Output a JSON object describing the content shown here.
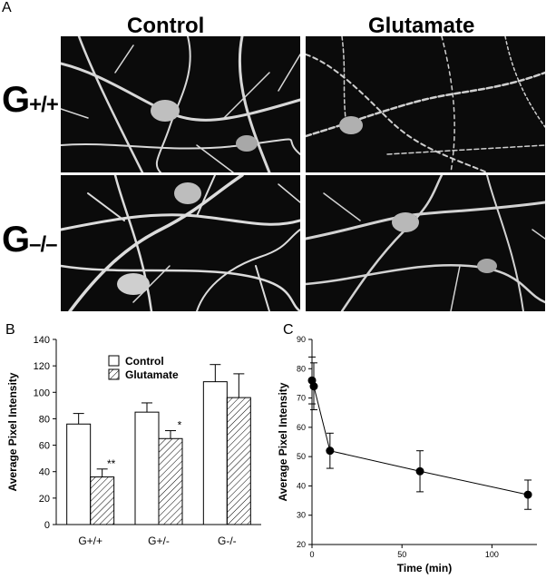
{
  "panel_a": {
    "letter": "A",
    "columns": [
      "Control",
      "Glutamate"
    ],
    "rows": [
      {
        "base": "G",
        "suffix": "+/+"
      },
      {
        "base": "G",
        "suffix": "–/–"
      }
    ]
  },
  "panel_b": {
    "letter": "B"
  },
  "panel_c": {
    "letter": "C"
  },
  "chart_data": [
    {
      "type": "bar",
      "panel": "B",
      "ylabel": "Average Pixel Intensity",
      "xlabel": "",
      "ylim": [
        0,
        140
      ],
      "yticks": [
        0,
        20,
        40,
        60,
        80,
        100,
        120,
        140
      ],
      "categories": [
        "G+/+",
        "G+/-",
        "G-/-"
      ],
      "series": [
        {
          "name": "Control",
          "values": [
            76,
            85,
            108
          ],
          "errors": [
            8,
            7,
            13
          ],
          "fill": "white"
        },
        {
          "name": "Glutamate",
          "values": [
            36,
            65,
            96
          ],
          "errors": [
            6,
            6,
            18
          ],
          "fill": "hatched"
        }
      ],
      "annotations": [
        "**",
        "*",
        ""
      ],
      "legend": "top-left"
    },
    {
      "type": "line",
      "panel": "C",
      "xlabel": "Time (min)",
      "ylabel": "Average Pixel Intensity",
      "xlim": [
        0,
        125
      ],
      "ylim": [
        20,
        90
      ],
      "xticks": [
        0,
        50,
        100
      ],
      "yticks": [
        20,
        30,
        40,
        50,
        60,
        70,
        80,
        90
      ],
      "series": [
        {
          "x": [
            0,
            1,
            10,
            60,
            120
          ],
          "y": [
            76,
            74,
            52,
            45,
            37
          ],
          "errors": [
            8,
            8,
            6,
            7,
            5
          ]
        }
      ]
    }
  ]
}
